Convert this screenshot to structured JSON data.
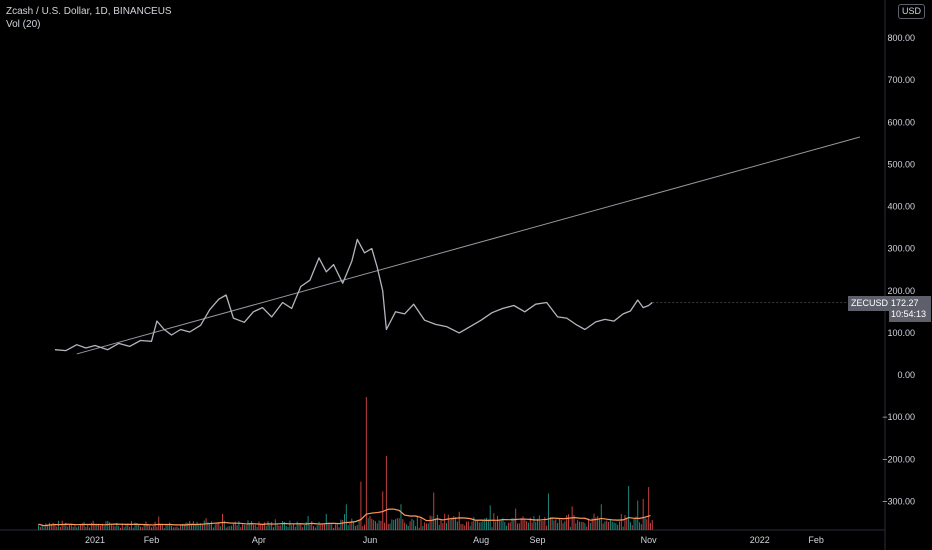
{
  "legend": {
    "title": "Zcash / U.S. Dollar, 1D, BINANCEUS",
    "indicator": "Vol (20)"
  },
  "currency": "USD",
  "symbol": "ZECUSD",
  "last_price": "172.27",
  "countdown": "10:54:13",
  "colors": {
    "price_line": "#b2b5be",
    "trend_line": "#9598a1",
    "vol_up": "#26a69a",
    "vol_down": "#ef5350",
    "vol_ma": "#ff9a5c",
    "axis_text": "#d1d4dc"
  },
  "chart_data": {
    "type": "line",
    "y_ticks": [
      "800.00",
      "700.00",
      "600.00",
      "500.00",
      "400.00",
      "300.00",
      "200.00",
      "100.00",
      "0.00",
      "−100.00",
      "−200.00",
      "−300.00"
    ],
    "y_tick_values": [
      800,
      700,
      600,
      500,
      400,
      300,
      200,
      100,
      0,
      -100,
      -200,
      -300
    ],
    "x_ticks": [
      "2021",
      "Feb",
      "Apr",
      "Jun",
      "Aug",
      "Sep",
      "Nov",
      "2022",
      "Feb"
    ],
    "x_tick_dates": [
      "2021-01-01",
      "2021-02-01",
      "2021-04-01",
      "2021-06-01",
      "2021-08-01",
      "2021-09-01",
      "2021-11-01",
      "2022-01-01",
      "2022-02-01"
    ],
    "series": [
      {
        "values": [
          [
            "2020-12-10",
            60
          ],
          [
            "2020-12-16",
            58
          ],
          [
            "2020-12-22",
            72
          ],
          [
            "2020-12-27",
            64
          ],
          [
            "2021-01-01",
            70
          ],
          [
            "2021-01-08",
            60
          ],
          [
            "2021-01-14",
            75
          ],
          [
            "2021-01-20",
            68
          ],
          [
            "2021-01-26",
            82
          ],
          [
            "2021-02-01",
            80
          ],
          [
            "2021-02-04",
            128
          ],
          [
            "2021-02-08",
            108
          ],
          [
            "2021-02-12",
            95
          ],
          [
            "2021-02-17",
            108
          ],
          [
            "2021-02-22",
            102
          ],
          [
            "2021-02-28",
            118
          ],
          [
            "2021-03-05",
            155
          ],
          [
            "2021-03-10",
            180
          ],
          [
            "2021-03-14",
            190
          ],
          [
            "2021-03-18",
            135
          ],
          [
            "2021-03-24",
            125
          ],
          [
            "2021-03-29",
            150
          ],
          [
            "2021-04-03",
            160
          ],
          [
            "2021-04-08",
            138
          ],
          [
            "2021-04-14",
            172
          ],
          [
            "2021-04-19",
            158
          ],
          [
            "2021-04-24",
            210
          ],
          [
            "2021-04-29",
            225
          ],
          [
            "2021-05-04",
            278
          ],
          [
            "2021-05-08",
            245
          ],
          [
            "2021-05-12",
            262
          ],
          [
            "2021-05-17",
            218
          ],
          [
            "2021-05-22",
            270
          ],
          [
            "2021-05-25",
            322
          ],
          [
            "2021-05-29",
            290
          ],
          [
            "2021-06-02",
            300
          ],
          [
            "2021-06-05",
            255
          ],
          [
            "2021-06-08",
            200
          ],
          [
            "2021-06-10",
            108
          ],
          [
            "2021-06-15",
            150
          ],
          [
            "2021-06-20",
            145
          ],
          [
            "2021-06-25",
            168
          ],
          [
            "2021-07-01",
            130
          ],
          [
            "2021-07-07",
            120
          ],
          [
            "2021-07-13",
            115
          ],
          [
            "2021-07-20",
            100
          ],
          [
            "2021-07-26",
            115
          ],
          [
            "2021-08-01",
            130
          ],
          [
            "2021-08-07",
            148
          ],
          [
            "2021-08-13",
            158
          ],
          [
            "2021-08-19",
            165
          ],
          [
            "2021-08-25",
            150
          ],
          [
            "2021-08-31",
            168
          ],
          [
            "2021-09-06",
            172
          ],
          [
            "2021-09-12",
            138
          ],
          [
            "2021-09-17",
            135
          ],
          [
            "2021-09-22",
            120
          ],
          [
            "2021-09-27",
            108
          ],
          [
            "2021-10-03",
            126
          ],
          [
            "2021-10-08",
            132
          ],
          [
            "2021-10-13",
            128
          ],
          [
            "2021-10-18",
            145
          ],
          [
            "2021-10-22",
            152
          ],
          [
            "2021-10-26",
            178
          ],
          [
            "2021-10-29",
            160
          ],
          [
            "2021-11-01",
            165
          ],
          [
            "2021-11-03",
            172
          ]
        ]
      }
    ],
    "trend_line": [
      [
        "2020-12-22",
        50
      ],
      [
        "2022-02-25",
        565
      ]
    ],
    "volume_bars": [
      [
        "2021-01-05",
        12
      ],
      [
        "2021-01-25",
        10
      ],
      [
        "2021-02-05",
        25
      ],
      [
        "2021-02-20",
        14
      ],
      [
        "2021-03-03",
        22
      ],
      [
        "2021-03-12",
        30
      ],
      [
        "2021-03-26",
        18
      ],
      [
        "2021-04-10",
        20
      ],
      [
        "2021-04-28",
        26
      ],
      [
        "2021-05-08",
        30
      ],
      [
        "2021-05-19",
        48
      ],
      [
        "2021-05-27",
        90
      ],
      [
        "2021-05-30",
        248
      ],
      [
        "2021-06-08",
        72
      ],
      [
        "2021-06-10",
        138
      ],
      [
        "2021-06-18",
        48
      ],
      [
        "2021-07-06",
        70
      ],
      [
        "2021-07-20",
        34
      ],
      [
        "2021-08-06",
        46
      ],
      [
        "2021-08-20",
        40
      ],
      [
        "2021-09-07",
        68
      ],
      [
        "2021-09-20",
        44
      ],
      [
        "2021-10-06",
        48
      ],
      [
        "2021-10-21",
        82
      ],
      [
        "2021-10-26",
        55
      ],
      [
        "2021-10-29",
        58
      ],
      [
        "2021-11-01",
        80
      ]
    ],
    "ylim": [
      -345,
      845
    ],
    "grid": false
  }
}
